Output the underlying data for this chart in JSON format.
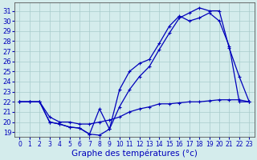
{
  "background_color": "#d4ecec",
  "grid_color": "#a8cccc",
  "line_color": "#0000bb",
  "xlabel": "Graphe des températures (°c)",
  "xlabel_fontsize": 7.5,
  "ytick_fontsize": 6,
  "xtick_fontsize": 5.5,
  "ylim": [
    18.5,
    31.8
  ],
  "xlim": [
    -0.5,
    23.5
  ],
  "yticks": [
    19,
    20,
    21,
    22,
    23,
    24,
    25,
    26,
    27,
    28,
    29,
    30,
    31
  ],
  "xticks": [
    0,
    1,
    2,
    3,
    4,
    5,
    6,
    7,
    8,
    9,
    10,
    11,
    12,
    13,
    14,
    15,
    16,
    17,
    18,
    19,
    20,
    21,
    22,
    23
  ],
  "curve1_x": [
    0,
    1,
    2,
    3,
    4,
    5,
    6,
    7,
    8,
    9,
    10,
    11,
    12,
    13,
    14,
    15,
    16,
    17,
    18,
    19,
    20,
    21,
    22,
    23
  ],
  "curve1_y": [
    22.0,
    22.0,
    22.0,
    20.0,
    19.8,
    19.5,
    19.4,
    18.8,
    18.7,
    19.3,
    21.5,
    23.2,
    24.5,
    25.5,
    27.2,
    28.8,
    30.3,
    30.8,
    31.3,
    31.0,
    31.0,
    27.3,
    24.5,
    22.0
  ],
  "curve2_x": [
    0,
    1,
    2,
    3,
    4,
    5,
    6,
    7,
    8,
    9,
    10,
    11,
    12,
    13,
    14,
    15,
    16,
    17,
    18,
    19,
    20,
    21,
    22,
    23
  ],
  "curve2_y": [
    22.0,
    22.0,
    22.0,
    20.0,
    19.8,
    19.5,
    19.4,
    18.8,
    21.3,
    19.3,
    23.2,
    25.0,
    25.8,
    26.2,
    27.8,
    29.5,
    30.5,
    30.0,
    30.3,
    30.8,
    30.0,
    27.5,
    22.0,
    22.0
  ],
  "curve3_x": [
    0,
    1,
    2,
    3,
    4,
    5,
    6,
    7,
    8,
    9,
    10,
    11,
    12,
    13,
    14,
    15,
    16,
    17,
    18,
    19,
    20,
    21,
    22,
    23
  ],
  "curve3_y": [
    22.0,
    22.0,
    22.0,
    20.5,
    20.0,
    20.0,
    19.8,
    19.8,
    20.0,
    20.2,
    20.5,
    21.0,
    21.3,
    21.5,
    21.8,
    21.8,
    21.9,
    22.0,
    22.0,
    22.1,
    22.2,
    22.2,
    22.2,
    22.0
  ]
}
